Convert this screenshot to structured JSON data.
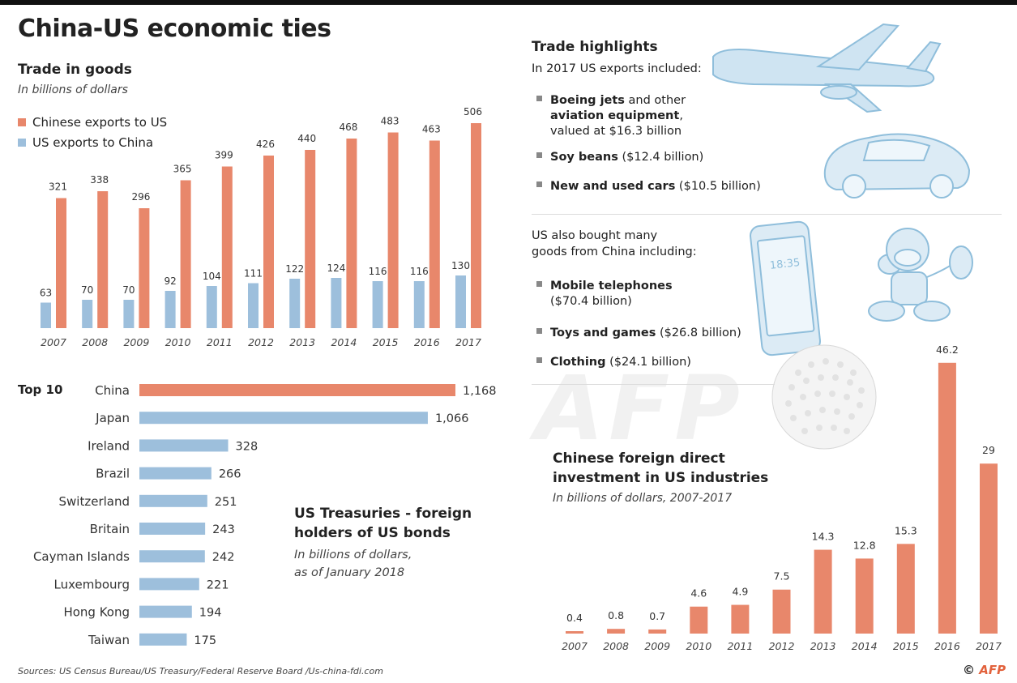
{
  "title": "China-US economic ties",
  "trade": {
    "heading": "Trade in goods",
    "subtitle": "In billions of dollars"
  },
  "treasuries": {
    "top_label": "Top 10",
    "heading_line1": "US Treasuries - foreign",
    "heading_line2": "holders of US bonds",
    "subtitle_line1": "In billions of dollars,",
    "subtitle_line2": "as of January 2018"
  },
  "highlights": {
    "heading": "Trade highlights",
    "intro": "In 2017 US exports included:",
    "exports": [
      {
        "bold1": "Boeing jets",
        "rest1": " and other",
        "bold2": "aviation equipment",
        "rest2": ",",
        "line3": "valued at $16.3 billion"
      },
      {
        "bold": "Soy beans",
        "rest": " ($12.4 billion)"
      },
      {
        "bold": "New and used cars",
        "rest": " ($10.5 billion)"
      }
    ],
    "import_intro_line1": "US also bought many",
    "import_intro_line2": "goods from China including:",
    "imports": [
      {
        "bold": "Mobile telephones",
        "line2": "($70.4 billion)"
      },
      {
        "bold": "Toys and games",
        "rest": " ($26.8 billion)"
      },
      {
        "bold": "Clothing",
        "rest": " ($24.1 billion)"
      }
    ],
    "icons": [
      "airplane-icon",
      "car-icon",
      "mobile-phone-icon",
      "toy-monkey-icon",
      "golf-ball-icon"
    ],
    "phone_time": "18:35"
  },
  "fdi": {
    "heading_line1": "Chinese foreign direct",
    "heading_line2": "investment in US industries",
    "subtitle": "In billions of dollars, 2007-2017"
  },
  "watermark": "AFP",
  "source": "Sources: US Census Bureau/US Treasury/Federal Reserve Board /Us-china-fdi.com",
  "logo": {
    "prefix": "© ",
    "brand": "AFP"
  },
  "colors": {
    "china": "#e8876b",
    "us": "#9dbfdc",
    "icon": "#a9cfe6"
  },
  "chart_data": [
    {
      "type": "bar",
      "categories": [
        "2007",
        "2008",
        "2009",
        "2010",
        "2011",
        "2012",
        "2013",
        "2014",
        "2015",
        "2016",
        "2017"
      ],
      "series": [
        {
          "name": "Chinese exports to US",
          "values": [
            321,
            338,
            296,
            365,
            399,
            426,
            440,
            468,
            483,
            463,
            506
          ]
        },
        {
          "name": "US exports to China",
          "values": [
            63,
            70,
            70,
            92,
            104,
            111,
            122,
            124,
            116,
            116,
            130
          ]
        }
      ],
      "ylim": [
        0,
        520
      ]
    },
    {
      "type": "bar",
      "orientation": "horizontal",
      "categories": [
        "China",
        "Japan",
        "Ireland",
        "Brazil",
        "Switzerland",
        "Britain",
        "Cayman Islands",
        "Luxembourg",
        "Hong Kong",
        "Taiwan"
      ],
      "values": [
        1168,
        1066,
        328,
        266,
        251,
        243,
        242,
        221,
        194,
        175
      ],
      "value_labels": [
        "1,168",
        "1,066",
        "328",
        "266",
        "251",
        "243",
        "242",
        "221",
        "194",
        "175"
      ],
      "xlim": [
        0,
        1200
      ]
    },
    {
      "type": "bar",
      "categories": [
        "2007",
        "2008",
        "2009",
        "2010",
        "2011",
        "2012",
        "2013",
        "2014",
        "2015",
        "2016",
        "2017"
      ],
      "values": [
        0.4,
        0.8,
        0.7,
        4.6,
        4.9,
        7.5,
        14.3,
        12.8,
        15.3,
        46.2,
        29
      ],
      "ylim": [
        0,
        47
      ]
    }
  ]
}
